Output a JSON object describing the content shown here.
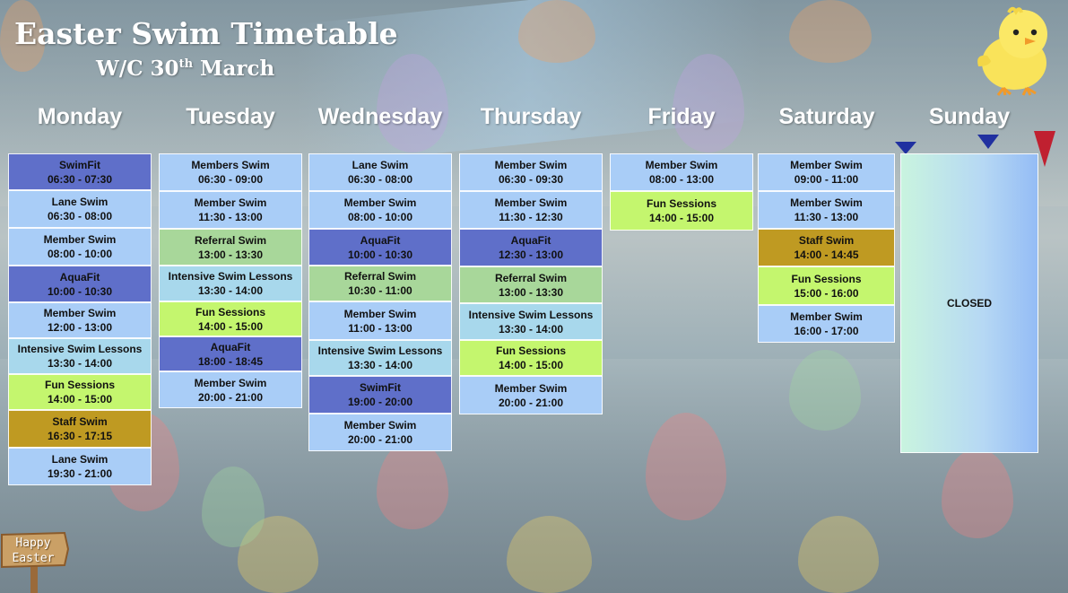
{
  "header": {
    "title": "Easter Swim Timetable",
    "subtitle_prefix": "W/C 30",
    "subtitle_sup": "th",
    "subtitle_suffix": " March"
  },
  "colors": {
    "swimfit": "#5f6fc9",
    "aquafit": "#5f6fc9",
    "member": "#a9cdf7",
    "lane": "#a9cdf7",
    "referral": "#a8d79a",
    "intensive": "#a8d8ec",
    "fun": "#c4f66e",
    "staff": "#bf9a22"
  },
  "days": [
    {
      "name": "Monday",
      "sessions": [
        {
          "type": "swimfit",
          "name": "SwimFit",
          "time": "06:30 - 07:30"
        },
        {
          "type": "lane",
          "name": "Lane Swim",
          "time": "06:30 - 08:00"
        },
        {
          "type": "member",
          "name": "Member Swim",
          "time": "08:00 - 10:00"
        },
        {
          "type": "aquafit",
          "name": "AquaFit",
          "time": "10:00 - 10:30"
        },
        {
          "type": "member",
          "name": "Member Swim",
          "time": "12:00 - 13:00"
        },
        {
          "type": "intensive",
          "name": "Intensive Swim Lessons",
          "time": "13:30 - 14:00"
        },
        {
          "type": "fun",
          "name": "Fun Sessions",
          "time": "14:00 - 15:00"
        },
        {
          "type": "staff",
          "name": "Staff Swim",
          "time": "16:30 - 17:15"
        },
        {
          "type": "lane",
          "name": "Lane Swim",
          "time": "19:30 - 21:00"
        }
      ]
    },
    {
      "name": "Tuesday",
      "sessions": [
        {
          "type": "member",
          "name": "Members Swim",
          "time": "06:30 - 09:00"
        },
        {
          "type": "member",
          "name": "Member Swim",
          "time": "11:30 - 13:00"
        },
        {
          "type": "referral",
          "name": "Referral Swim",
          "time": "13:00 - 13:30"
        },
        {
          "type": "intensive",
          "name": "Intensive Swim Lessons",
          "time": "13:30 - 14:00"
        },
        {
          "type": "fun",
          "name": "Fun Sessions",
          "time": "14:00 - 15:00"
        },
        {
          "type": "aquafit",
          "name": "AquaFit",
          "time": "18:00 - 18:45"
        },
        {
          "type": "member",
          "name": "Member Swim",
          "time": "20:00 - 21:00"
        }
      ]
    },
    {
      "name": "Wednesday",
      "sessions": [
        {
          "type": "lane",
          "name": "Lane Swim",
          "time": "06:30 - 08:00"
        },
        {
          "type": "member",
          "name": "Member Swim",
          "time": "08:00 - 10:00"
        },
        {
          "type": "aquafit",
          "name": "AquaFit",
          "time": "10:00 - 10:30"
        },
        {
          "type": "referral",
          "name": "Referral Swim",
          "time": "10:30 - 11:00"
        },
        {
          "type": "member",
          "name": "Member Swim",
          "time": "11:00 - 13:00"
        },
        {
          "type": "intensive",
          "name": "Intensive Swim Lessons",
          "time": "13:30 - 14:00"
        },
        {
          "type": "swimfit",
          "name": "SwimFit",
          "time": "19:00 - 20:00"
        },
        {
          "type": "member",
          "name": "Member Swim",
          "time": "20:00 - 21:00"
        }
      ]
    },
    {
      "name": "Thursday",
      "sessions": [
        {
          "type": "member",
          "name": "Member Swim",
          "time": "06:30 - 09:30"
        },
        {
          "type": "member",
          "name": "Member Swim",
          "time": "11:30 - 12:30"
        },
        {
          "type": "aquafit",
          "name": "AquaFit",
          "time": "12:30 - 13:00"
        },
        {
          "type": "referral",
          "name": "Referral Swim",
          "time": "13:00 - 13:30"
        },
        {
          "type": "intensive",
          "name": "Intensive Swim Lessons",
          "time": "13:30 - 14:00"
        },
        {
          "type": "fun",
          "name": "Fun Sessions",
          "time": "14:00 - 15:00"
        },
        {
          "type": "member",
          "name": "Member Swim",
          "time": "20:00 - 21:00"
        }
      ]
    },
    {
      "name": "Friday",
      "sessions": [
        {
          "type": "member",
          "name": "Member Swim",
          "time": "08:00 - 13:00"
        },
        {
          "type": "fun",
          "name": "Fun Sessions",
          "time": "14:00 - 15:00"
        }
      ]
    },
    {
      "name": "Saturday",
      "sessions": [
        {
          "type": "member",
          "name": "Member Swim",
          "time": "09:00 - 11:00"
        },
        {
          "type": "member",
          "name": "Member Swim",
          "time": "11:30 - 13:00"
        },
        {
          "type": "staff",
          "name": "Staff Swim",
          "time": "14:00 - 14:45"
        },
        {
          "type": "fun",
          "name": "Fun Sessions",
          "time": "15:00 - 16:00"
        },
        {
          "type": "member",
          "name": "Member Swim",
          "time": "16:00 - 17:00"
        }
      ]
    },
    {
      "name": "Sunday",
      "closed_label": "CLOSED",
      "sessions": []
    }
  ],
  "decor": {
    "sign_line1": "Happy",
    "sign_line2": "Easter",
    "chick_icon": "chick-icon",
    "sign_icon": "easter-sign-icon"
  }
}
